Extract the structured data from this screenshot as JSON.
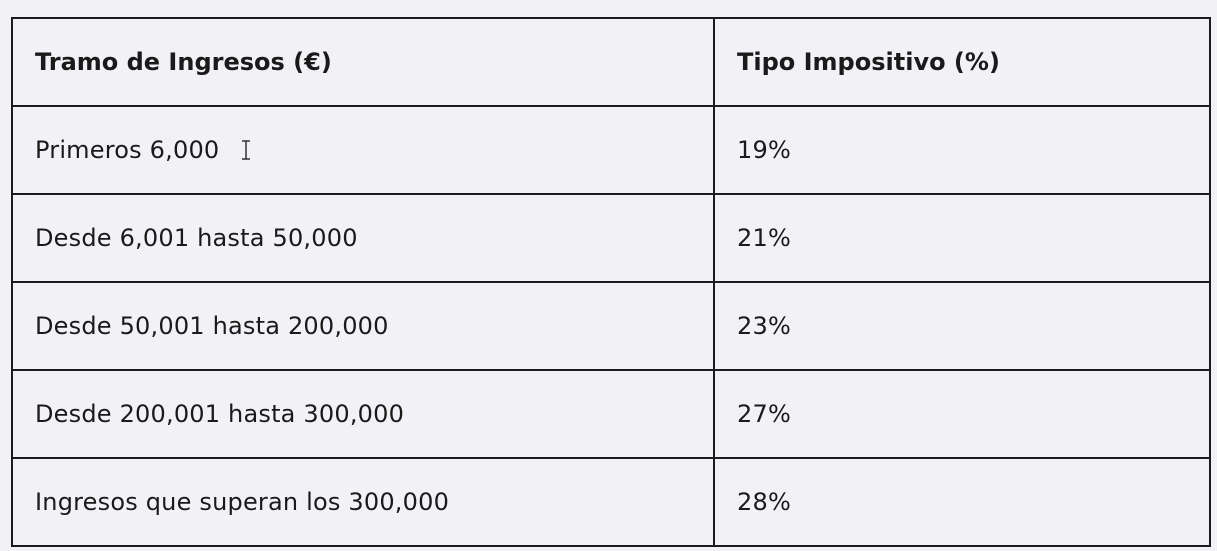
{
  "table": {
    "headers": [
      "Tramo de Ingresos (€)",
      "Tipo Impositivo (%)"
    ],
    "rows": [
      [
        "Primeros 6,000",
        "19%"
      ],
      [
        "Desde 6,001 hasta 50,000",
        "21%"
      ],
      [
        "Desde 50,001 hasta 200,000",
        "23%"
      ],
      [
        "Desde 200,001 hasta 300,000",
        "27%"
      ],
      [
        "Ingresos que superan los 300,000",
        "28%"
      ]
    ]
  },
  "cursor": {
    "icon": "text-cursor-icon"
  }
}
